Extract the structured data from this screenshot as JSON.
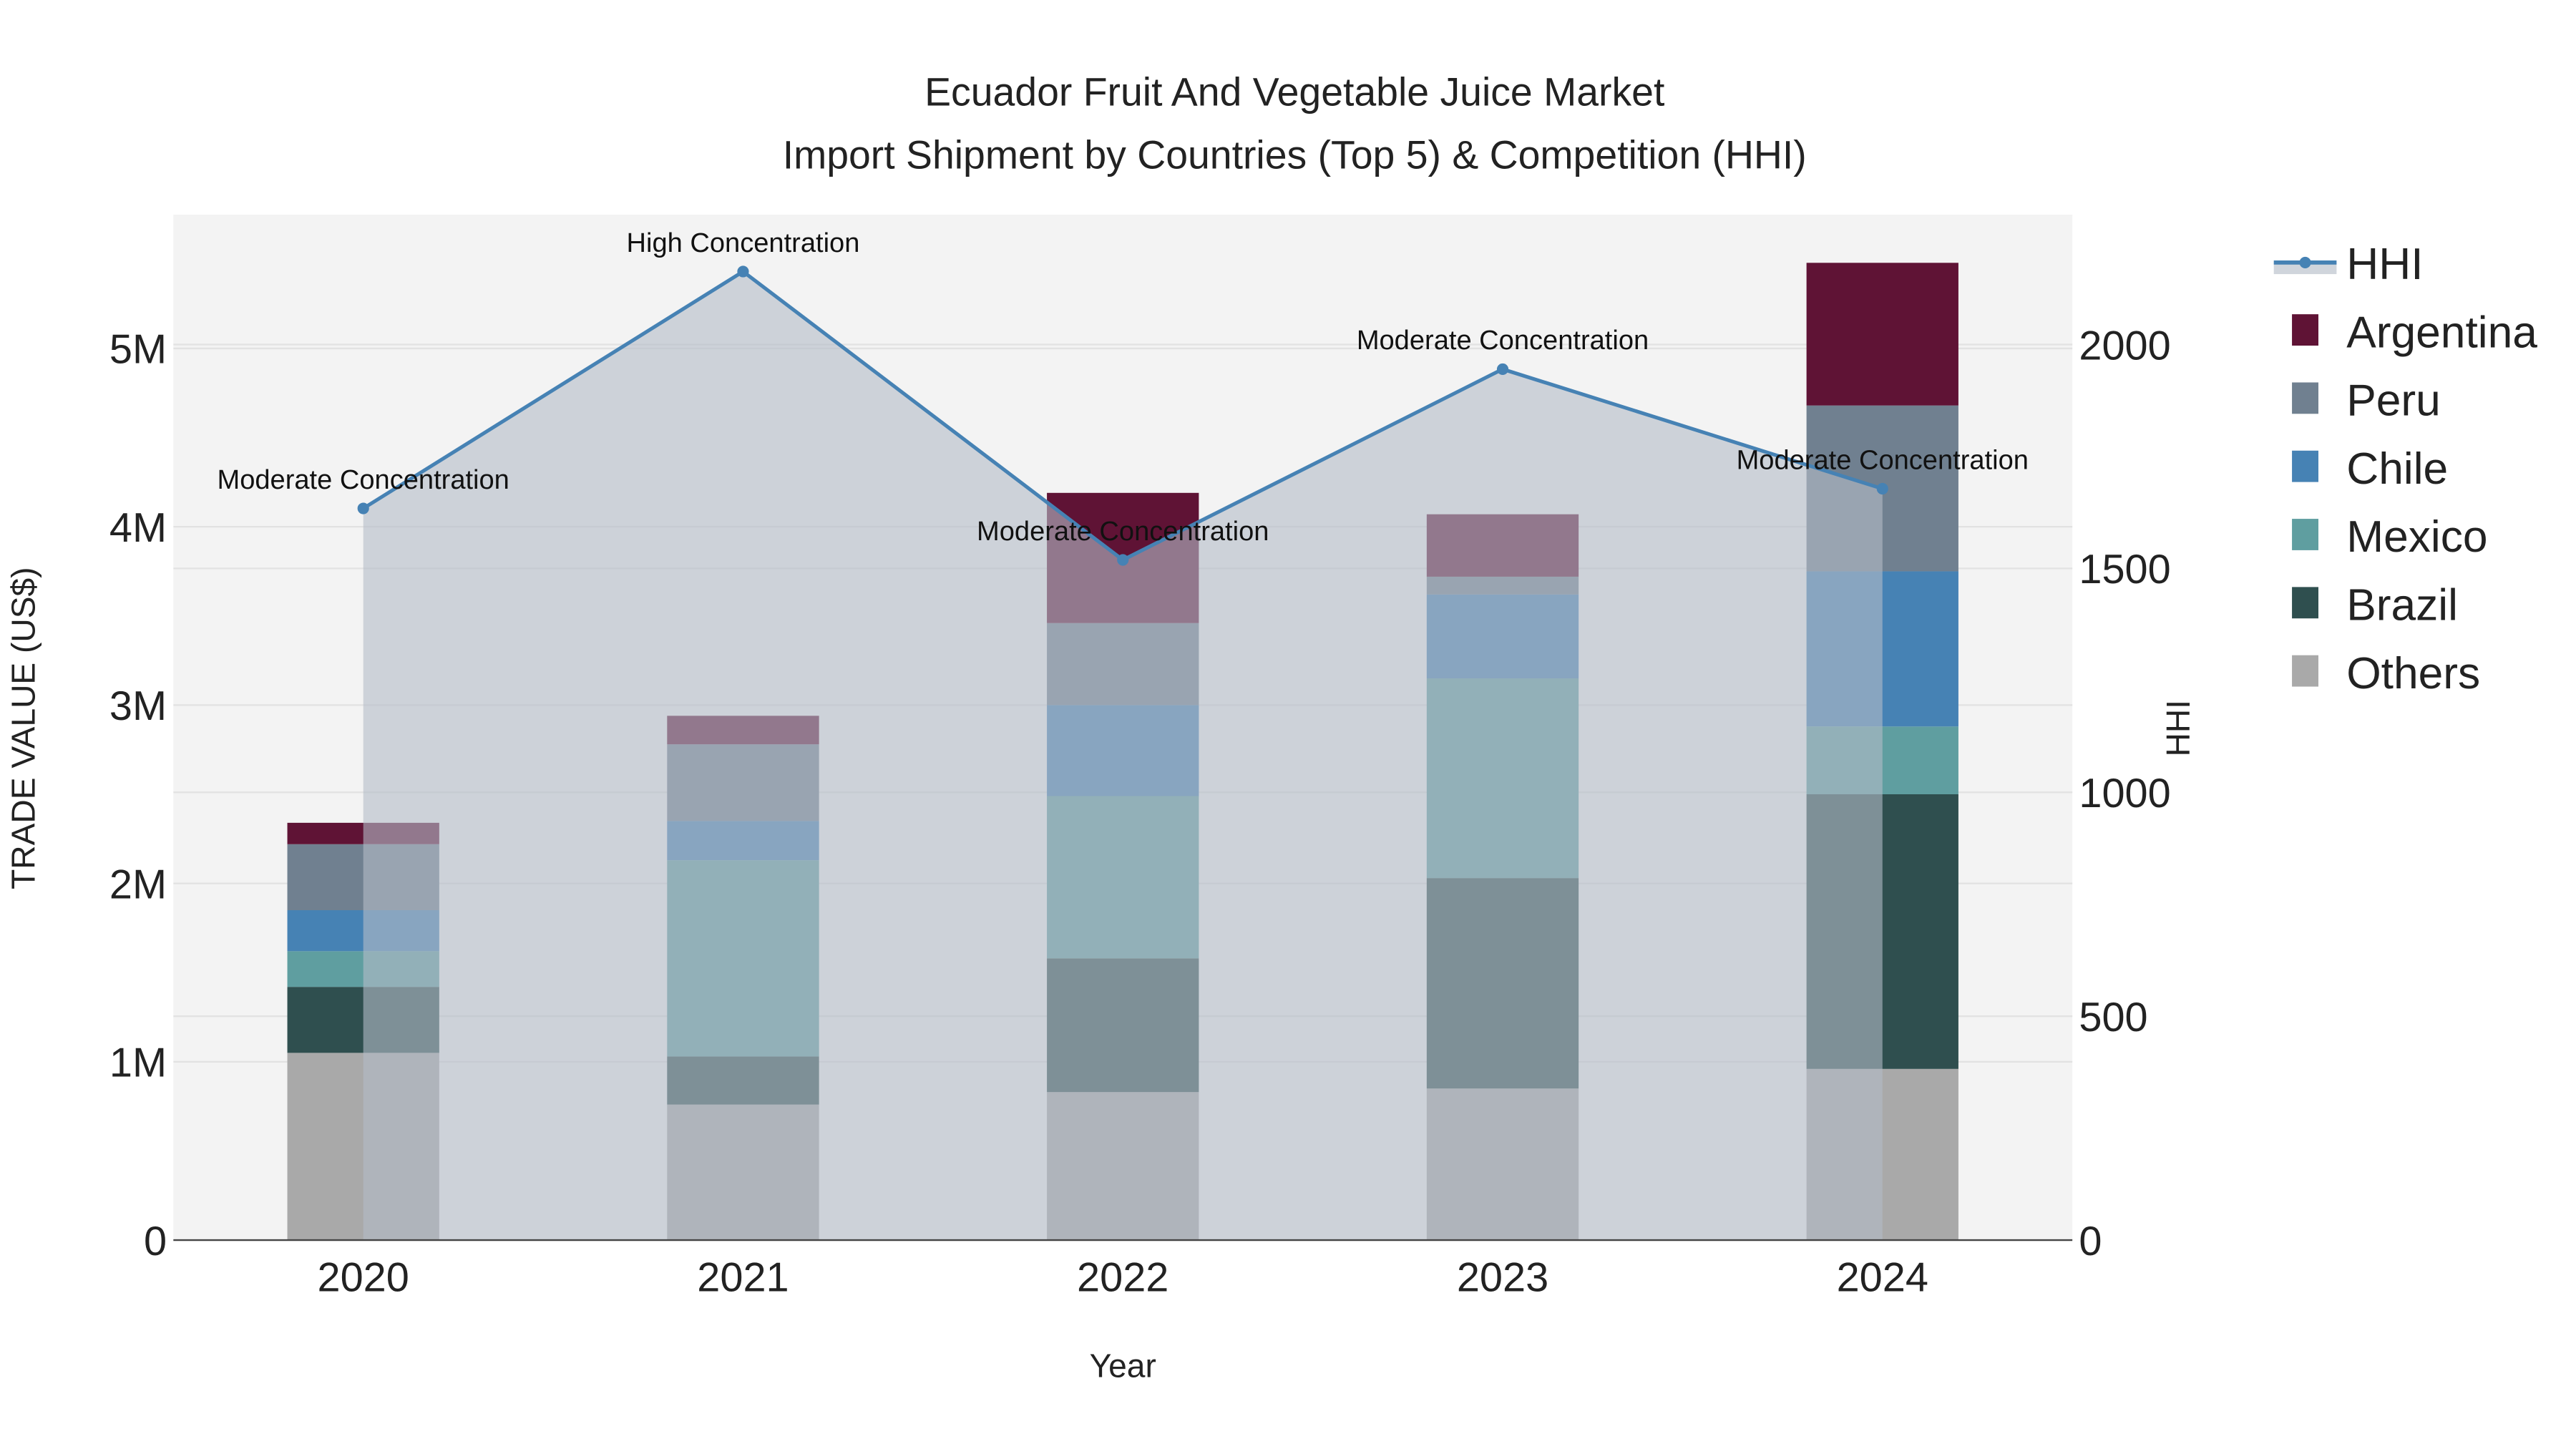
{
  "chart_data": {
    "type": "bar",
    "title_line1": "Ecuador Fruit And Vegetable Juice Market",
    "title_line2": "Import Shipment by Countries (Top 5) & Competition (HHI)",
    "xlabel": "Year",
    "ylabel": "TRADE VALUE (US$)",
    "y2label": "HHI",
    "categories": [
      "2020",
      "2021",
      "2022",
      "2023",
      "2024"
    ],
    "ylim": [
      0,
      5750000
    ],
    "y2lim": [
      0,
      2290
    ],
    "yticks": [
      {
        "v": 0,
        "label": "0"
      },
      {
        "v": 1000000,
        "label": "1M"
      },
      {
        "v": 2000000,
        "label": "2M"
      },
      {
        "v": 3000000,
        "label": "3M"
      },
      {
        "v": 4000000,
        "label": "4M"
      },
      {
        "v": 5000000,
        "label": "5M"
      }
    ],
    "y2ticks": [
      {
        "v": 0,
        "label": "0"
      },
      {
        "v": 500,
        "label": "500"
      },
      {
        "v": 1000,
        "label": "1000"
      },
      {
        "v": 1500,
        "label": "1500"
      },
      {
        "v": 2000,
        "label": "2000"
      }
    ],
    "series": [
      {
        "name": "Others",
        "color": "#a9a9a9",
        "values": [
          1050000,
          760000,
          830000,
          850000,
          960000
        ]
      },
      {
        "name": "Brazil",
        "color": "#2f4f4f",
        "values": [
          370000,
          270000,
          750000,
          1180000,
          1540000
        ]
      },
      {
        "name": "Mexico",
        "color": "#5f9ea0",
        "values": [
          200000,
          1100000,
          910000,
          1120000,
          380000
        ]
      },
      {
        "name": "Chile",
        "color": "#4682b4",
        "values": [
          230000,
          220000,
          510000,
          470000,
          870000
        ]
      },
      {
        "name": "Peru",
        "color": "#708090",
        "values": [
          370000,
          430000,
          460000,
          100000,
          930000
        ]
      },
      {
        "name": "Argentina",
        "color": "#5f1335",
        "values": [
          120000,
          160000,
          730000,
          350000,
          800000
        ]
      }
    ],
    "hhi": {
      "name": "HHI",
      "color": "#4682b4",
      "values": [
        1634,
        2163,
        1519,
        1945,
        1678
      ],
      "annotations": [
        "Moderate Concentration",
        "High Concentration",
        "Moderate Concentration",
        "Moderate Concentration",
        "Moderate Concentration"
      ]
    },
    "legend": [
      "HHI",
      "Argentina",
      "Peru",
      "Chile",
      "Mexico",
      "Brazil",
      "Others"
    ],
    "legend_position": "right",
    "grid": true
  }
}
